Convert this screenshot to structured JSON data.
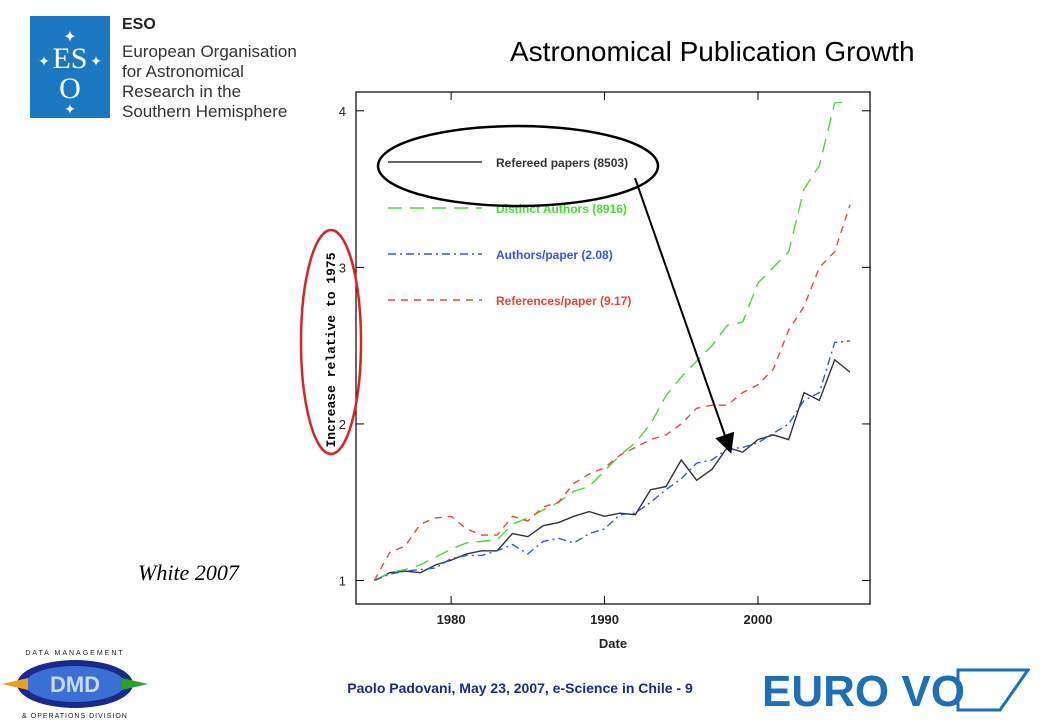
{
  "eso": {
    "acronym": "ESO",
    "lines": [
      "European Organisation",
      "for Astronomical",
      "Research in the",
      "Southern Hemisphere"
    ],
    "brand_color": "#1d78c2"
  },
  "slide_title": "Astronomical Publication Growth",
  "citation": "White 2007",
  "footer": "Paolo Padovani, May 23, 2007, e-Science in Chile - 9",
  "logos": {
    "dmd_top": "DATA MANAGEMENT",
    "dmd_bottom": "& OPERATIONS DIVISION",
    "eurovo": "EURO VO"
  },
  "chart_data": {
    "type": "line",
    "xlabel": "Date",
    "ylabel": "Increase relative to 1975",
    "xlim": [
      1973.8,
      2007.3
    ],
    "ylim": [
      0.85,
      4.12
    ],
    "xticks": [
      1980,
      1990,
      2000
    ],
    "yticks": [
      1,
      2,
      3,
      4
    ],
    "legend_position": "top-left",
    "x": [
      1975,
      1976,
      1977,
      1978,
      1979,
      1980,
      1981,
      1982,
      1983,
      1984,
      1985,
      1986,
      1987,
      1988,
      1989,
      1990,
      1991,
      1992,
      1993,
      1994,
      1995,
      1996,
      1997,
      1998,
      1999,
      2000,
      2001,
      2002,
      2003,
      2004,
      2005,
      2006
    ],
    "series": [
      {
        "name": "Refereed papers (8503)",
        "color": "#333333",
        "dash": "solid",
        "values": [
          1.0,
          1.05,
          1.06,
          1.05,
          1.1,
          1.13,
          1.17,
          1.19,
          1.19,
          1.3,
          1.28,
          1.35,
          1.37,
          1.41,
          1.44,
          1.41,
          1.43,
          1.42,
          1.58,
          1.6,
          1.77,
          1.64,
          1.71,
          1.85,
          1.82,
          1.9,
          1.93,
          1.9,
          2.2,
          2.15,
          2.41,
          2.33
        ]
      },
      {
        "name": "Distinct Authors (8916)",
        "color": "#44dd33",
        "dash": "long",
        "values": [
          1.0,
          1.05,
          1.07,
          1.1,
          1.15,
          1.2,
          1.24,
          1.25,
          1.26,
          1.36,
          1.4,
          1.45,
          1.5,
          1.57,
          1.6,
          1.7,
          1.8,
          1.88,
          2.0,
          2.18,
          2.3,
          2.4,
          2.5,
          2.63,
          2.65,
          2.9,
          3.0,
          3.1,
          3.5,
          3.65,
          4.05,
          4.06
        ]
      },
      {
        "name": "Authors/paper (2.08)",
        "color": "#3355dd",
        "dash": "dashdot",
        "values": [
          1.0,
          1.04,
          1.06,
          1.07,
          1.08,
          1.14,
          1.16,
          1.16,
          1.19,
          1.23,
          1.17,
          1.25,
          1.27,
          1.24,
          1.3,
          1.33,
          1.42,
          1.43,
          1.5,
          1.58,
          1.65,
          1.75,
          1.77,
          1.84,
          1.85,
          1.88,
          1.94,
          2.0,
          2.15,
          2.2,
          2.52,
          2.53
        ]
      },
      {
        "name": "References/paper (9.17)",
        "color": "#ee4433",
        "dash": "short",
        "values": [
          1.0,
          1.18,
          1.22,
          1.36,
          1.4,
          1.41,
          1.33,
          1.29,
          1.29,
          1.41,
          1.38,
          1.47,
          1.5,
          1.62,
          1.68,
          1.72,
          1.8,
          1.85,
          1.9,
          1.93,
          2.0,
          2.1,
          2.12,
          2.12,
          2.2,
          2.25,
          2.35,
          2.6,
          2.75,
          3.0,
          3.1,
          3.4
        ]
      }
    ],
    "annotation_color": "#dd2222"
  }
}
